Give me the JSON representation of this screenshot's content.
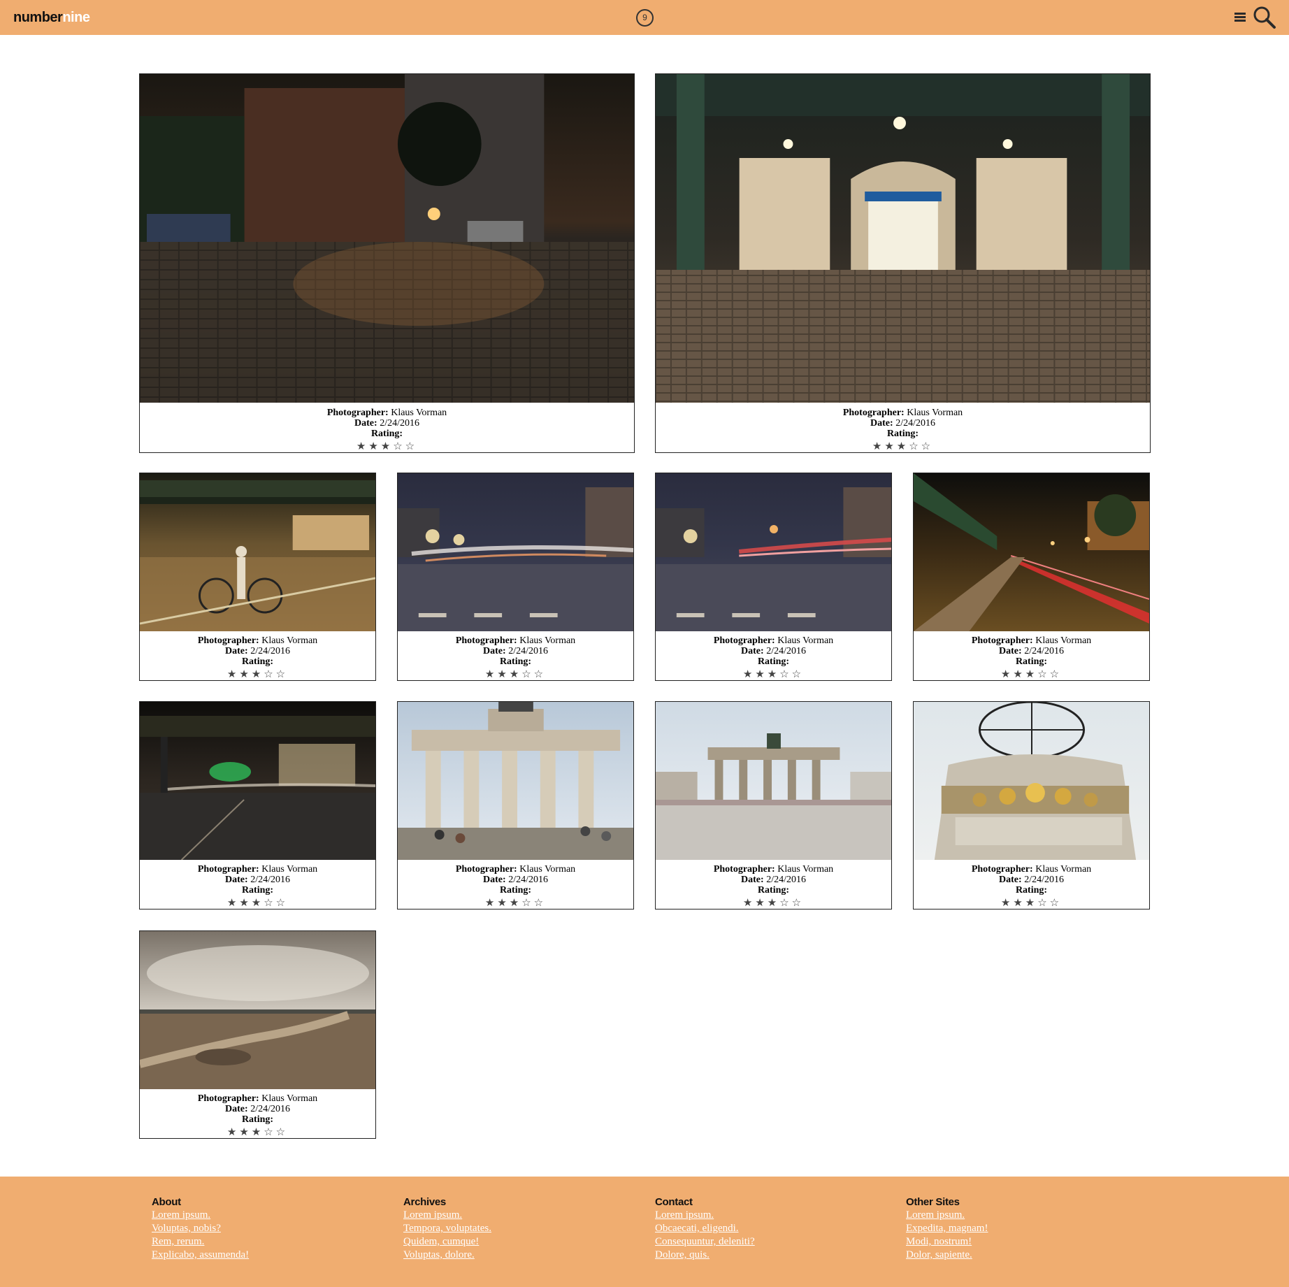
{
  "header": {
    "logo_part1": "number",
    "logo_part2": "nine",
    "count": "9",
    "menu_icon": "hamburger-icon",
    "search_icon": "magnifier-icon",
    "bar_color": "#f0ad70"
  },
  "gallery": {
    "photographer_label": "Photographer:",
    "date_label": "Date:",
    "rating_label": "Rating:",
    "items": [
      {
        "photographer": "Klaus Vorman",
        "date": "2/24/2016",
        "stars": "★★★☆☆",
        "scene": "night cobblestone street with brick buildings"
      },
      {
        "photographer": "Klaus Vorman",
        "date": "2/24/2016",
        "stars": "★★★☆☆",
        "scene": "station entrance under elevated railway"
      },
      {
        "photographer": "Klaus Vorman",
        "date": "2/24/2016",
        "stars": "★★★☆☆",
        "scene": "cyclist at night intersection"
      },
      {
        "photographer": "Klaus Vorman",
        "date": "2/24/2016",
        "stars": "★★★☆☆",
        "scene": "night intersection light trails"
      },
      {
        "photographer": "Klaus Vorman",
        "date": "2/24/2016",
        "stars": "★★★☆☆",
        "scene": "night intersection red light trails"
      },
      {
        "photographer": "Klaus Vorman",
        "date": "2/24/2016",
        "stars": "★★★☆☆",
        "scene": "elevated railway avenue at night"
      },
      {
        "photographer": "Klaus Vorman",
        "date": "2/24/2016",
        "stars": "★★★☆☆",
        "scene": "bridge with green light at night"
      },
      {
        "photographer": "Klaus Vorman",
        "date": "2/24/2016",
        "stars": "★★★☆☆",
        "scene": "Brandenburg Gate close up"
      },
      {
        "photographer": "Klaus Vorman",
        "date": "2/24/2016",
        "stars": "★★★☆☆",
        "scene": "Brandenburg Gate with square"
      },
      {
        "photographer": "Klaus Vorman",
        "date": "2/24/2016",
        "stars": "★★★☆☆",
        "scene": "world clock"
      },
      {
        "photographer": "Klaus Vorman",
        "date": "2/24/2016",
        "stars": "★★★☆☆",
        "scene": "open field under cloudy sky"
      }
    ]
  },
  "footer": {
    "columns": [
      {
        "title": "About",
        "links": [
          "Lorem ipsum.",
          "Voluptas, nobis?",
          "Rem, rerum.",
          "Explicabo, assumenda!"
        ]
      },
      {
        "title": "Archives",
        "links": [
          "Lorem ipsum.",
          "Tempora, voluptates.",
          "Quidem, cumque!",
          "Voluptas, dolore."
        ]
      },
      {
        "title": "Contact",
        "links": [
          "Lorem ipsum.",
          "Obcaecati, eligendi.",
          "Consequuntur, deleniti?",
          "Dolore, quis."
        ]
      },
      {
        "title": "Other Sites",
        "links": [
          "Lorem ipsum.",
          "Expedita, magnam!",
          "Modi, nostrum!",
          "Dolor, sapiente."
        ]
      }
    ]
  }
}
